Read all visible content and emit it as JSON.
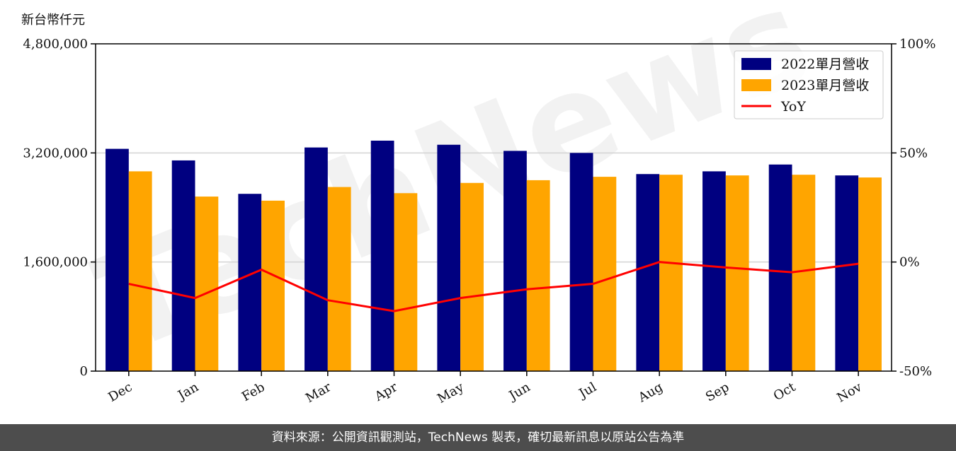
{
  "unit_label": "新台幣仟元",
  "footer_text": "資料來源：公開資訊觀測站，TechNews 製表，確切最新訊息以原站公告為準",
  "watermark_text": "TechNews",
  "colors": {
    "series_2022": "#000080",
    "series_2023": "#FFA500",
    "yoy_line": "#FF0000",
    "grid": "#d3d3d3",
    "footer_bg": "#4d4d4d"
  },
  "chart_data": {
    "type": "bar",
    "categories": [
      "Dec",
      "Jan",
      "Feb",
      "Mar",
      "Apr",
      "May",
      "Jun",
      "Jul",
      "Aug",
      "Sep",
      "Oct",
      "Nov"
    ],
    "series": [
      {
        "name": "2022單月營收",
        "values": [
          3260000,
          3090000,
          2600000,
          3280000,
          3380000,
          3320000,
          3230000,
          3200000,
          2890000,
          2930000,
          3030000,
          2870000
        ]
      },
      {
        "name": "2023單月營收",
        "values": [
          2930000,
          2560000,
          2500000,
          2700000,
          2610000,
          2760000,
          2800000,
          2850000,
          2880000,
          2870000,
          2880000,
          2840000
        ]
      }
    ],
    "line_series": {
      "name": "YoY",
      "axis": "right",
      "values": [
        -10,
        -16.5,
        -3.5,
        -17.5,
        -22.5,
        -16.5,
        -12.5,
        -10,
        0,
        -2.5,
        -4.7,
        -0.8
      ]
    },
    "left_axis": {
      "ylim": [
        0,
        4800000
      ],
      "ticks": [
        0,
        1600000,
        3200000,
        4800000
      ],
      "tick_labels": [
        "0",
        "1,600,000",
        "3,200,000",
        "4,800,000"
      ]
    },
    "right_axis": {
      "ylim": [
        -50,
        100
      ],
      "ticks": [
        -50,
        0,
        50,
        100
      ],
      "tick_labels": [
        "-50%",
        "0%",
        "50%",
        "100%"
      ]
    },
    "grid": true,
    "legend_position": "top-right",
    "xlabel": "",
    "ylabel": ""
  }
}
